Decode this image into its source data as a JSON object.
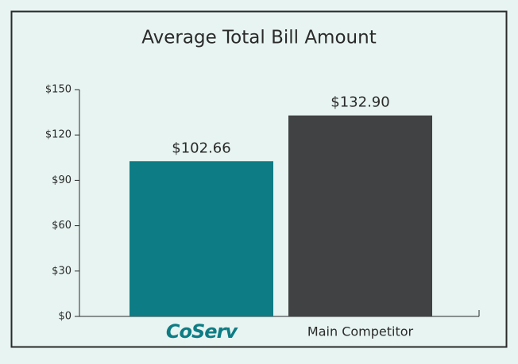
{
  "chart_data": {
    "type": "bar",
    "title": "Average Total Bill Amount",
    "categories": [
      "CoServ",
      "Main Competitor"
    ],
    "values": [
      102.66,
      132.9
    ],
    "value_labels": [
      "$102.66",
      "$132.90"
    ],
    "colors": [
      "#0e7c84",
      "#414244"
    ],
    "ylim": [
      0,
      150
    ],
    "yticks": [
      {
        "value": 0,
        "label": "$0"
      },
      {
        "value": 30,
        "label": "$30"
      },
      {
        "value": 60,
        "label": "$60"
      },
      {
        "value": 90,
        "label": "$90"
      },
      {
        "value": 120,
        "label": "$120"
      },
      {
        "value": 150,
        "label": "$150"
      }
    ]
  }
}
